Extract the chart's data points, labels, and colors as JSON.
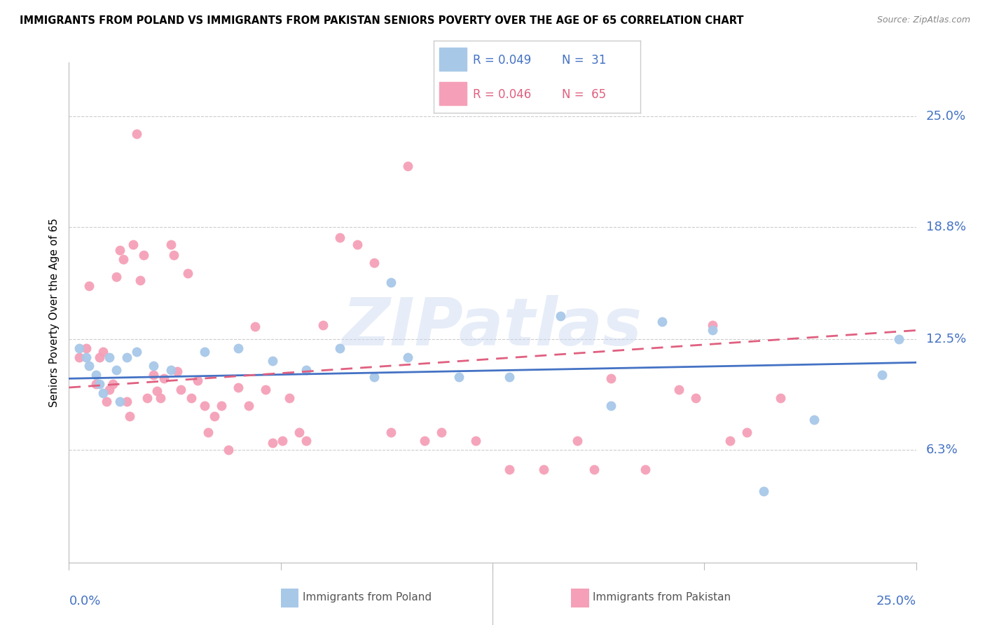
{
  "title": "IMMIGRANTS FROM POLAND VS IMMIGRANTS FROM PAKISTAN SENIORS POVERTY OVER THE AGE OF 65 CORRELATION CHART",
  "source": "Source: ZipAtlas.com",
  "ylabel": "Seniors Poverty Over the Age of 65",
  "poland_color": "#a8c8e8",
  "pakistan_color": "#f5a0b8",
  "poland_line_color": "#4472c4",
  "pakistan_line_color": "#e06080",
  "watermark": "ZIPatlas",
  "xlim": [
    0.0,
    0.25
  ],
  "ylim": [
    0.0,
    0.28
  ],
  "ytick_values": [
    0.063,
    0.125,
    0.188,
    0.25
  ],
  "ytick_labels": [
    "6.3%",
    "12.5%",
    "18.8%",
    "25.0%"
  ],
  "poland_N": 31,
  "pakistan_N": 65,
  "poland_trend_x": [
    0.0,
    0.25
  ],
  "poland_trend_y": [
    0.103,
    0.112
  ],
  "pakistan_trend_x": [
    0.0,
    0.25
  ],
  "pakistan_trend_y": [
    0.098,
    0.13
  ],
  "pl_x": [
    0.003,
    0.005,
    0.006,
    0.008,
    0.009,
    0.01,
    0.012,
    0.014,
    0.015,
    0.017,
    0.02,
    0.025,
    0.03,
    0.04,
    0.05,
    0.06,
    0.07,
    0.08,
    0.09,
    0.095,
    0.1,
    0.115,
    0.13,
    0.145,
    0.16,
    0.175,
    0.19,
    0.205,
    0.22,
    0.24,
    0.245
  ],
  "pl_y": [
    0.12,
    0.115,
    0.11,
    0.105,
    0.1,
    0.095,
    0.115,
    0.108,
    0.09,
    0.115,
    0.118,
    0.11,
    0.108,
    0.118,
    0.12,
    0.113,
    0.108,
    0.12,
    0.104,
    0.157,
    0.115,
    0.104,
    0.104,
    0.138,
    0.088,
    0.135,
    0.13,
    0.04,
    0.08,
    0.105,
    0.125
  ],
  "pk_x": [
    0.003,
    0.005,
    0.006,
    0.008,
    0.009,
    0.01,
    0.011,
    0.012,
    0.013,
    0.014,
    0.015,
    0.016,
    0.017,
    0.018,
    0.019,
    0.02,
    0.021,
    0.022,
    0.023,
    0.025,
    0.026,
    0.027,
    0.028,
    0.03,
    0.031,
    0.032,
    0.033,
    0.035,
    0.036,
    0.038,
    0.04,
    0.041,
    0.043,
    0.045,
    0.047,
    0.05,
    0.053,
    0.055,
    0.058,
    0.06,
    0.063,
    0.065,
    0.068,
    0.07,
    0.075,
    0.08,
    0.085,
    0.09,
    0.095,
    0.1,
    0.105,
    0.11,
    0.12,
    0.13,
    0.14,
    0.15,
    0.155,
    0.16,
    0.17,
    0.18,
    0.185,
    0.19,
    0.195,
    0.2,
    0.21
  ],
  "pk_y": [
    0.115,
    0.12,
    0.155,
    0.1,
    0.115,
    0.118,
    0.09,
    0.097,
    0.1,
    0.16,
    0.175,
    0.17,
    0.09,
    0.082,
    0.178,
    0.24,
    0.158,
    0.172,
    0.092,
    0.105,
    0.096,
    0.092,
    0.103,
    0.178,
    0.172,
    0.107,
    0.097,
    0.162,
    0.092,
    0.102,
    0.088,
    0.073,
    0.082,
    0.088,
    0.063,
    0.098,
    0.088,
    0.132,
    0.097,
    0.067,
    0.068,
    0.092,
    0.073,
    0.068,
    0.133,
    0.182,
    0.178,
    0.168,
    0.073,
    0.222,
    0.068,
    0.073,
    0.068,
    0.052,
    0.052,
    0.068,
    0.052,
    0.103,
    0.052,
    0.097,
    0.092,
    0.133,
    0.068,
    0.073,
    0.092
  ]
}
